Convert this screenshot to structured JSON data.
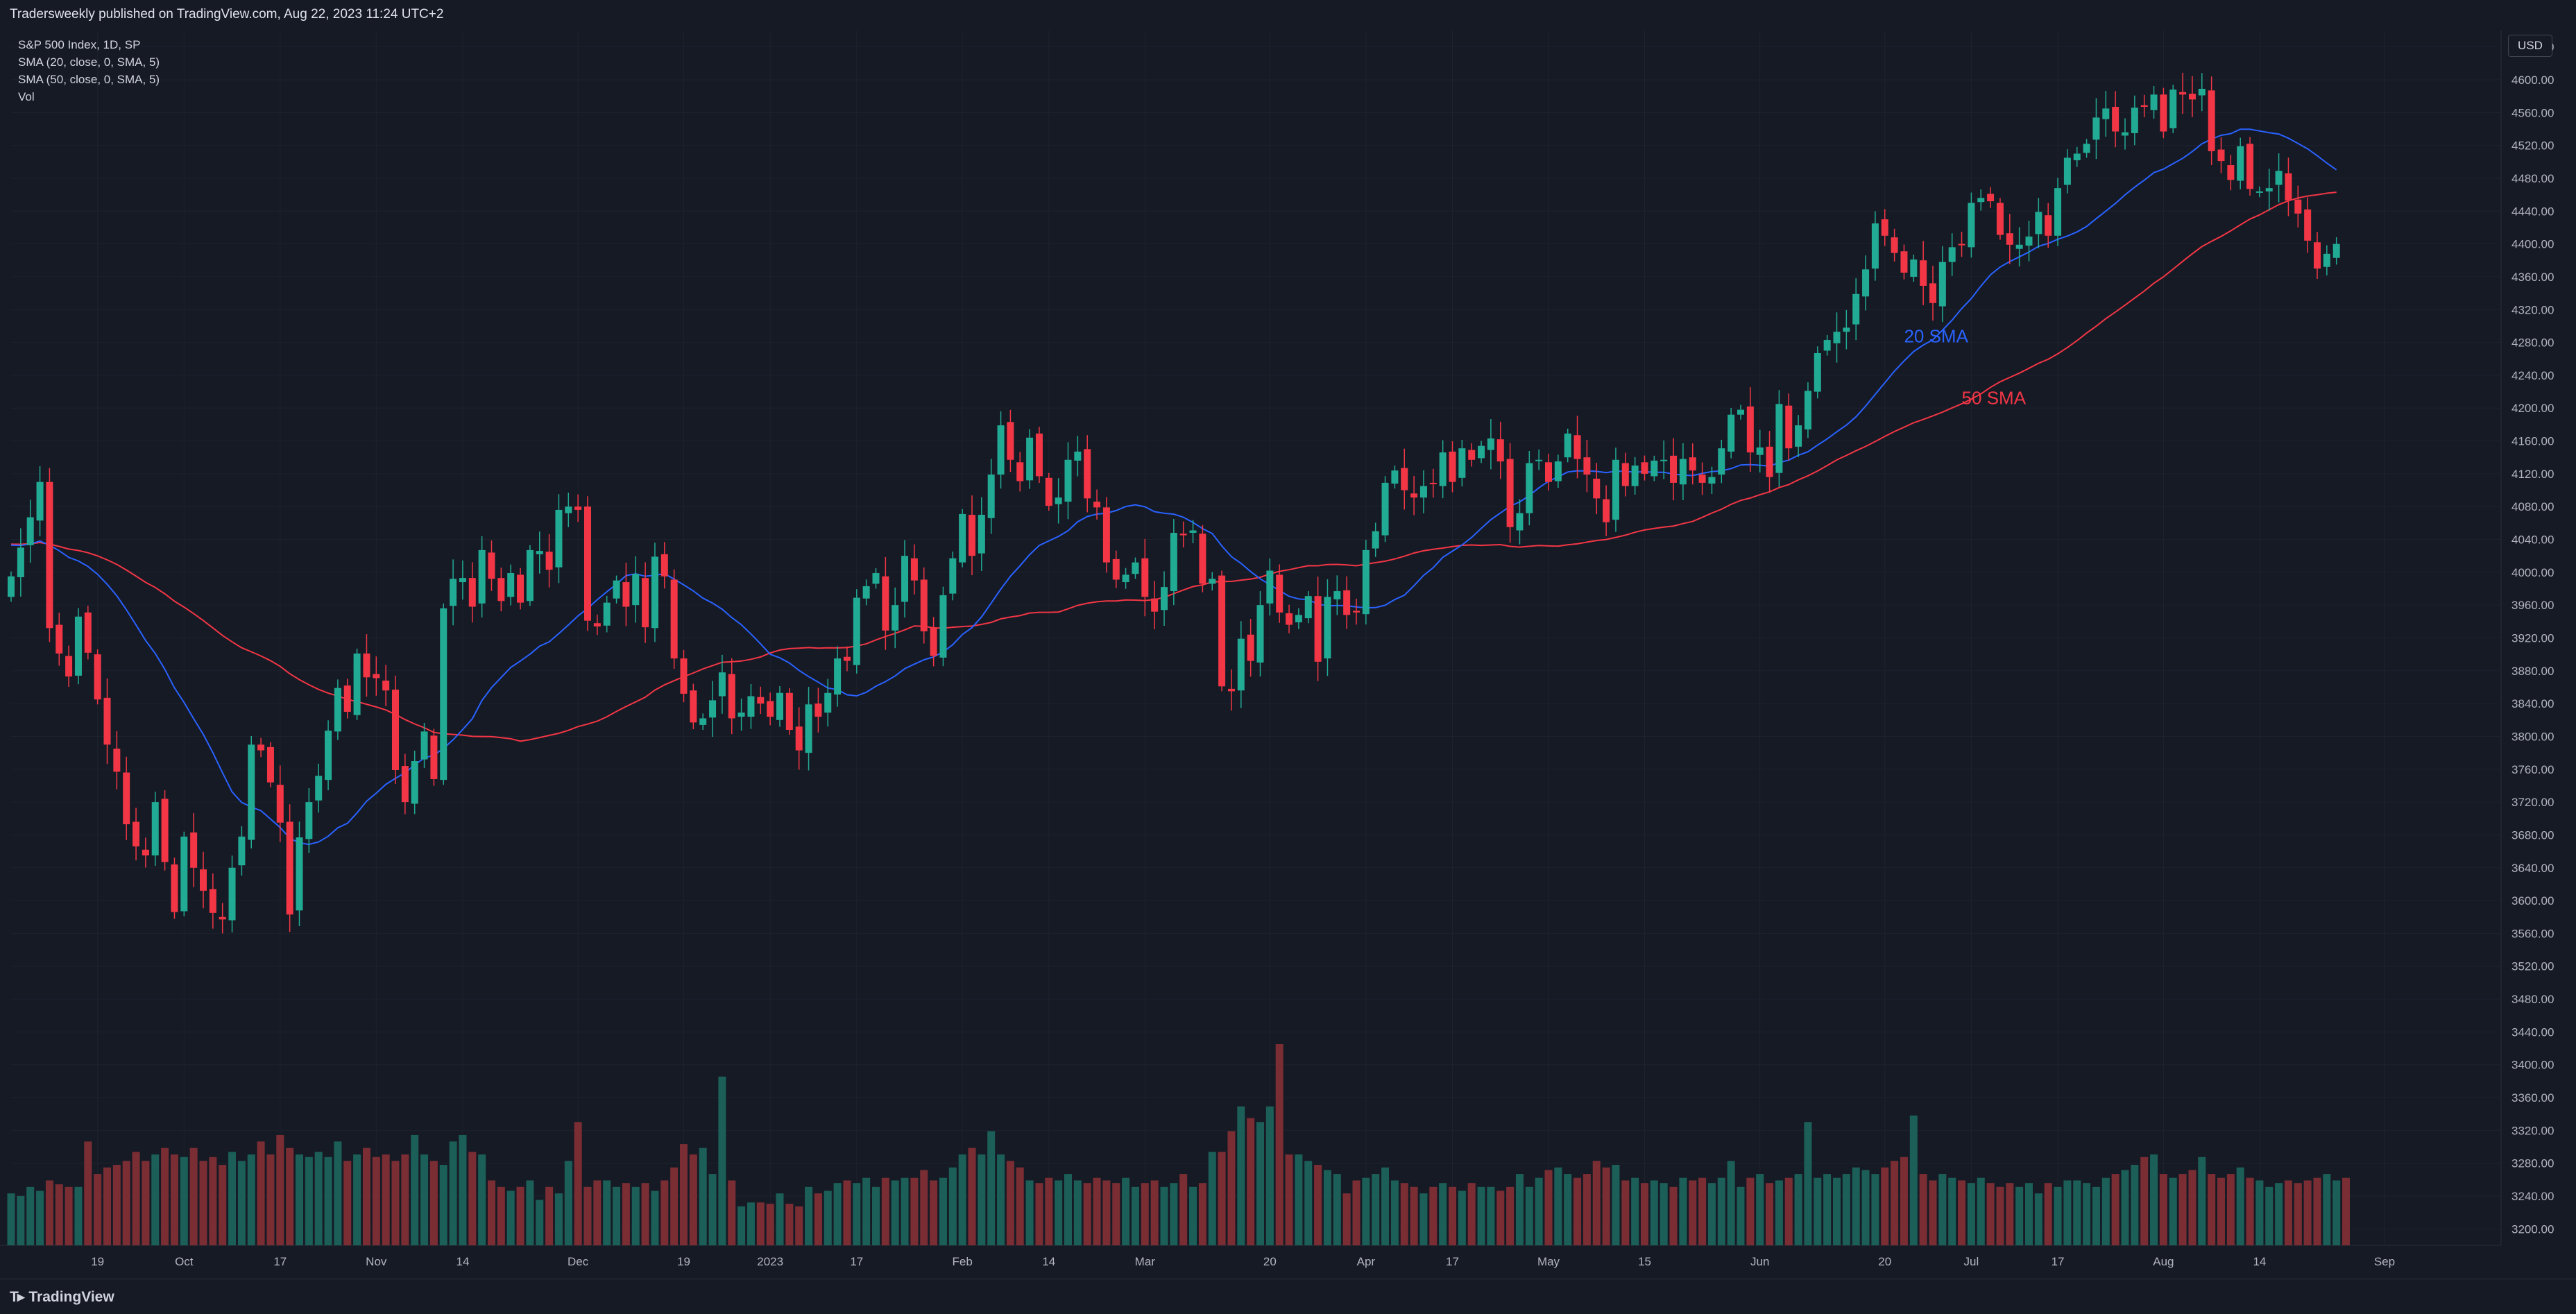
{
  "header": {
    "title": "Tradersweekly published on TradingView.com, Aug 22, 2023 11:24 UTC+2"
  },
  "legend": {
    "symbol": "S&P 500 Index, 1D, SP",
    "sma20": "SMA (20, close, 0, SMA, 5)",
    "sma50": "SMA (50, close, 0, SMA, 5)",
    "volume": "Vol"
  },
  "currency": "USD",
  "footer": {
    "logo": "TradingView"
  },
  "colors": {
    "up": "#22ab94",
    "down": "#f23645",
    "vol_up": "#1b5f58",
    "vol_down": "#7a2d33",
    "sma20": "#2962ff",
    "sma50": "#f23645",
    "background": "#161a25",
    "grid": "#1e222d"
  },
  "chart_data": {
    "type": "candlestick",
    "title": "S&P 500 Index, 1D, SP",
    "ylim": [
      3180,
      4660
    ],
    "y_ticks": [
      4640,
      4600,
      4560,
      4520,
      4480,
      4440,
      4400,
      4360,
      4320,
      4280,
      4240,
      4200,
      4160,
      4120,
      4080,
      4040,
      4000,
      3960,
      3920,
      3880,
      3840,
      3800,
      3760,
      3720,
      3680,
      3640,
      3600,
      3560,
      3520,
      3480,
      3440,
      3400,
      3360,
      3320,
      3280,
      3240,
      3200
    ],
    "x_ticks": [
      {
        "label": "19",
        "index": 9
      },
      {
        "label": "Oct",
        "index": 18
      },
      {
        "label": "17",
        "index": 28
      },
      {
        "label": "Nov",
        "index": 38
      },
      {
        "label": "14",
        "index": 47
      },
      {
        "label": "Dec",
        "index": 59
      },
      {
        "label": "19",
        "index": 70
      },
      {
        "label": "2023",
        "index": 79
      },
      {
        "label": "17",
        "index": 88
      },
      {
        "label": "Feb",
        "index": 99
      },
      {
        "label": "14",
        "index": 108
      },
      {
        "label": "Mar",
        "index": 118
      },
      {
        "label": "20",
        "index": 131
      },
      {
        "label": "Apr",
        "index": 141
      },
      {
        "label": "17",
        "index": 150
      },
      {
        "label": "May",
        "index": 160
      },
      {
        "label": "15",
        "index": 170
      },
      {
        "label": "Jun",
        "index": 182
      },
      {
        "label": "20",
        "index": 195
      },
      {
        "label": "Jul",
        "index": 204
      },
      {
        "label": "17",
        "index": 213
      },
      {
        "label": "Aug",
        "index": 224
      },
      {
        "label": "14",
        "index": 234
      },
      {
        "label": "Sep",
        "index": 247
      }
    ],
    "x_start": "2022-09-08",
    "close": [
      3995,
      4030,
      4067,
      4110,
      3932,
      3901,
      3873,
      3946,
      3902,
      3845,
      3790,
      3757,
      3693,
      3666,
      3655,
      3720,
      3647,
      3586,
      3678,
      3640,
      3612,
      3585,
      3577,
      3640,
      3678,
      3790,
      3783,
      3744,
      3695,
      3583,
      3677,
      3720,
      3752,
      3807,
      3859,
      3830,
      3901,
      3872,
      3871,
      3856,
      3759,
      3720,
      3770,
      3806,
      3748,
      3956,
      3992,
      3993,
      3958,
      4027,
      3992,
      3965,
      3999,
      3963,
      4027,
      4026,
      4003,
      4076,
      4080,
      4076,
      3941,
      3934,
      3963,
      3990,
      3958,
      3998,
      3933,
      4019,
      3995,
      3895,
      3852,
      3817,
      3822,
      3844,
      3878,
      3822,
      3829,
      3849,
      3840,
      3824,
      3853,
      3808,
      3783,
      3839,
      3824,
      3853,
      3895,
      3892,
      3969,
      3983,
      3999,
      3929,
      3960,
      4020,
      3990,
      3928,
      3898,
      3972,
      4017,
      4071,
      4020,
      4070,
      4119,
      4179,
      4137,
      4111,
      4164,
      4117,
      4081,
      4091,
      4137,
      4147,
      4090,
      4079,
      4012,
      3991,
      3997,
      4012,
      3970,
      3952,
      3982,
      4048,
      4045,
      4051,
      3986,
      3992,
      3861,
      3855,
      3919,
      3892,
      3960,
      4002,
      3951,
      3936,
      3948,
      3971,
      3891,
      3970,
      3977,
      3948,
      3951,
      4027,
      4050,
      4109,
      4124,
      4100,
      4091,
      4105,
      4108,
      4146,
      4110,
      4151,
      4137,
      4154,
      4163,
      4135,
      4055,
      4072,
      4133,
      4137,
      4110,
      4135,
      4169,
      4138,
      4119,
      4090,
      4061,
      4137,
      4105,
      4130,
      4120,
      4136,
      4137,
      4109,
      4138,
      4124,
      4109,
      4116,
      4151,
      4192,
      4198,
      4146,
      4152,
      4116,
      4205,
      4151,
      4179,
      4221,
      4267,
      4283,
      4293,
      4298,
      4339,
      4369,
      4425,
      4410,
      4389,
      4365,
      4381,
      4349,
      4328,
      4378,
      4396,
      4399,
      4450,
      4456,
      4452,
      4411,
      4399,
      4399,
      4409,
      4439,
      4410,
      4468,
      4505,
      4510,
      4522,
      4554,
      4565,
      4537,
      4536,
      4566,
      4567,
      4582,
      4537,
      4588,
      4582,
      4576,
      4589,
      4513,
      4501,
      4478,
      4519,
      4467,
      4464,
      4468,
      4489,
      4453,
      4437,
      4404,
      4370,
      4388,
      4400
    ],
    "volume_scale": [
      0.4,
      0.38,
      0.45,
      0.42,
      0.5,
      0.47,
      0.45,
      0.45,
      0.8,
      0.55,
      0.6,
      0.62,
      0.65,
      0.72,
      0.65,
      0.7,
      0.75,
      0.7,
      0.68,
      0.75,
      0.65,
      0.68,
      0.62,
      0.72,
      0.65,
      0.7,
      0.8,
      0.7,
      0.85,
      0.75,
      0.7,
      0.68,
      0.72,
      0.68,
      0.8,
      0.65,
      0.7,
      0.75,
      0.68,
      0.7,
      0.65,
      0.7,
      0.85,
      0.7,
      0.65,
      0.62,
      0.8,
      0.85,
      0.72,
      0.7,
      0.5,
      0.45,
      0.42,
      0.45,
      0.5,
      0.35,
      0.45,
      0.4,
      0.65,
      0.95,
      0.45,
      0.5,
      0.5,
      0.45,
      0.48,
      0.45,
      0.48,
      0.42,
      0.5,
      0.6,
      0.78,
      0.7,
      0.75,
      0.55,
      1.3,
      0.5,
      0.3,
      0.33,
      0.33,
      0.32,
      0.4,
      0.32,
      0.3,
      0.45,
      0.4,
      0.42,
      0.48,
      0.5,
      0.48,
      0.52,
      0.45,
      0.52,
      0.5,
      0.52,
      0.52,
      0.58,
      0.5,
      0.52,
      0.6,
      0.7,
      0.75,
      0.7,
      0.88,
      0.7,
      0.65,
      0.6,
      0.5,
      0.48,
      0.52,
      0.5,
      0.55,
      0.5,
      0.48,
      0.52,
      0.5,
      0.48,
      0.52,
      0.45,
      0.48,
      0.5,
      0.45,
      0.48,
      0.55,
      0.45,
      0.48,
      0.72,
      0.72,
      0.88,
      1.07,
      0.98,
      0.95,
      1.07,
      1.55,
      0.7,
      0.7,
      0.65,
      0.62,
      0.58,
      0.55,
      0.4,
      0.5,
      0.52,
      0.55,
      0.6,
      0.5,
      0.48,
      0.45,
      0.4,
      0.45,
      0.48,
      0.45,
      0.42,
      0.48,
      0.45,
      0.45,
      0.42,
      0.45,
      0.55,
      0.45,
      0.52,
      0.58,
      0.6,
      0.55,
      0.52,
      0.55,
      0.65,
      0.6,
      0.62,
      0.5,
      0.52,
      0.48,
      0.5,
      0.48,
      0.45,
      0.52,
      0.5,
      0.52,
      0.48,
      0.52,
      0.65,
      0.45,
      0.52,
      0.55,
      0.48,
      0.5,
      0.52,
      0.55,
      0.95,
      0.52,
      0.55,
      0.52,
      0.55,
      0.6,
      0.58,
      0.55,
      0.6,
      0.65,
      0.68,
      1.0,
      0.55,
      0.5,
      0.55,
      0.52,
      0.5,
      0.48,
      0.52,
      0.48,
      0.45,
      0.48,
      0.45,
      0.48,
      0.4,
      0.48,
      0.45,
      0.5,
      0.5,
      0.48,
      0.45,
      0.52,
      0.55,
      0.58,
      0.62,
      0.68,
      0.7,
      0.55,
      0.52,
      0.55,
      0.58,
      0.68,
      0.55,
      0.52,
      0.55,
      0.6,
      0.52,
      0.5,
      0.45,
      0.48,
      0.5,
      0.48,
      0.5,
      0.52,
      0.55,
      0.5,
      0.52
    ],
    "annotations": [
      {
        "text": "20 SMA",
        "color": "#2962ff",
        "price": 4280,
        "index": 197
      },
      {
        "text": "50 SMA",
        "color": "#f23645",
        "price": 4205,
        "index": 203
      }
    ]
  }
}
